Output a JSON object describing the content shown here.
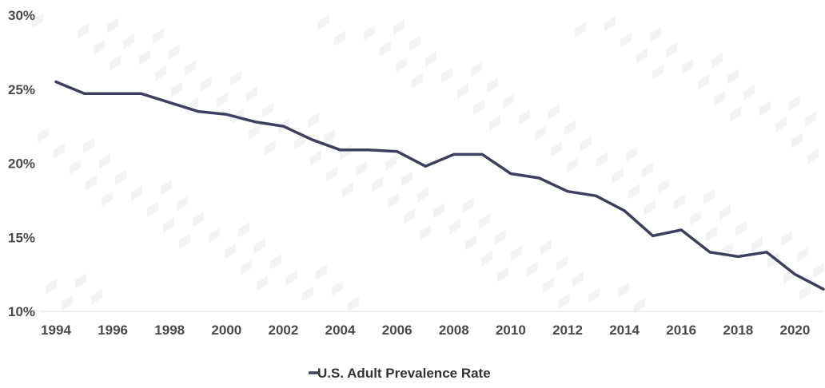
{
  "chart_data": {
    "type": "line",
    "title": "",
    "xlabel": "",
    "ylabel": "",
    "x": [
      1994,
      1995,
      1996,
      1997,
      1998,
      1999,
      2000,
      2001,
      2002,
      2003,
      2004,
      2005,
      2006,
      2007,
      2008,
      2009,
      2010,
      2011,
      2012,
      2013,
      2014,
      2015,
      2016,
      2017,
      2018,
      2019,
      2020,
      2021
    ],
    "series": [
      {
        "name": "U.S. Adult Prevalence Rate",
        "color": "#3d3f5e",
        "values": [
          25.5,
          24.7,
          24.7,
          24.7,
          24.1,
          23.5,
          23.3,
          22.8,
          22.5,
          21.6,
          20.9,
          20.9,
          20.8,
          19.8,
          20.6,
          20.6,
          19.3,
          19.0,
          18.1,
          17.8,
          16.8,
          15.1,
          15.5,
          14.0,
          13.7,
          14.0,
          12.5,
          11.5
        ]
      }
    ],
    "xlim": [
      1994,
      2021
    ],
    "ylim": [
      10,
      30
    ],
    "x_ticks": [
      "1994",
      "1996",
      "1998",
      "2000",
      "2002",
      "2004",
      "2006",
      "2008",
      "2010",
      "2012",
      "2014",
      "2016",
      "2018",
      "2020"
    ],
    "y_ticks": [
      "10%",
      "15%",
      "20%",
      "25%",
      "30%"
    ],
    "y_tick_values": [
      10,
      15,
      20,
      25,
      30
    ],
    "grid": false,
    "legend": "bottom-center",
    "axis_color": "#e2e2e2",
    "text_color": "#4a4a4a"
  }
}
